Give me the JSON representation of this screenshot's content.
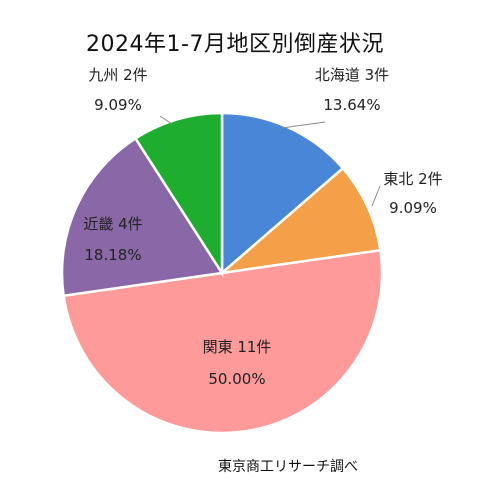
{
  "chart_data": {
    "type": "pie",
    "title": "2024年1-7月地区別倒産状況",
    "source": "東京商工リサーチ調べ",
    "slices": [
      {
        "name": "北海道",
        "count_label": "3件",
        "percent_label": "13.64%",
        "value": 13.64,
        "color": "#4a86d8"
      },
      {
        "name": "東北",
        "count_label": "2件",
        "percent_label": "9.09%",
        "value": 9.09,
        "color": "#f4a048"
      },
      {
        "name": "関東",
        "count_label": "11件",
        "percent_label": "50.00%",
        "value": 50.0,
        "color": "#ff9a9a"
      },
      {
        "name": "近畿",
        "count_label": "4件",
        "percent_label": "18.18%",
        "value": 18.18,
        "color": "#8a68a8"
      },
      {
        "name": "九州",
        "count_label": "2件",
        "percent_label": "9.09%",
        "value": 9.09,
        "color": "#1fad2f"
      }
    ]
  }
}
